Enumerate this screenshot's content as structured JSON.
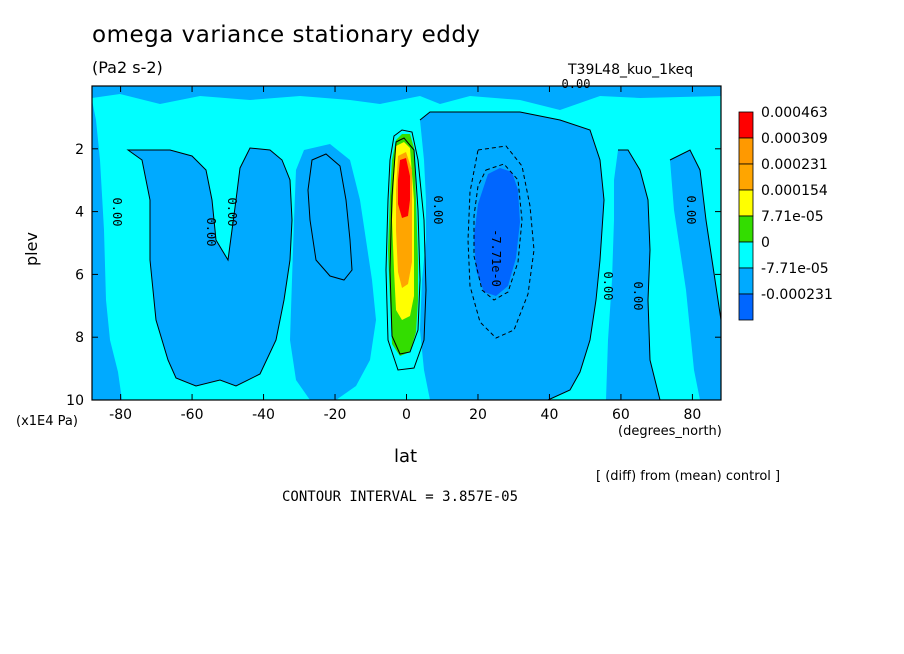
{
  "chart_data": {
    "type": "heatmap",
    "title": "omega variance stationary eddy",
    "units": "(Pa2 s-2)",
    "run_name": "T39L48_kuo_1keq",
    "xlabel": "lat",
    "ylabel": "plev",
    "x_unit": "(degrees_north)",
    "y_unit": "(x1E4 Pa)",
    "xlim": [
      -88,
      88
    ],
    "ylim": [
      10,
      0
    ],
    "x_ticks": [
      -80,
      -60,
      -40,
      -20,
      0,
      20,
      40,
      60,
      80
    ],
    "y_ticks": [
      2,
      4,
      6,
      8,
      10
    ],
    "note": "[ (diff) from (mean) control ]",
    "contour_interval": "CONTOUR INTERVAL = 3.857E-05",
    "colorbar": [
      {
        "label": "0.000463",
        "color": "#ff0000"
      },
      {
        "label": "0.000309",
        "color": "#ff9900"
      },
      {
        "label": "0.000231",
        "color": "#ffa500"
      },
      {
        "label": "0.000154",
        "color": "#ffff00"
      },
      {
        "label": "7.71e-05",
        "color": "#33dd00"
      },
      {
        "label": "0",
        "color": "#00ffff"
      },
      {
        "label": "-7.71e-05",
        "color": "#00aaff"
      },
      {
        "label": "-0.000231",
        "color": "#0066ff"
      }
    ],
    "contour_labels": [
      "0.00",
      "0.00",
      "0.00",
      "0.00",
      "0.00",
      "0.00",
      "0.00",
      "0.00",
      "-7.71e-0"
    ]
  }
}
